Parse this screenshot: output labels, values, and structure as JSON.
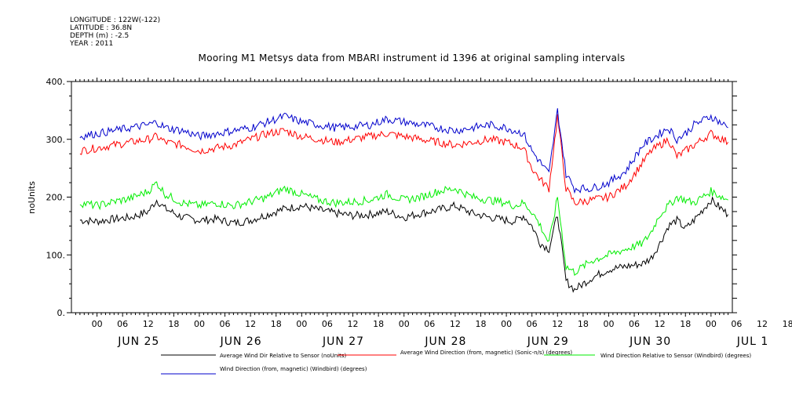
{
  "meta": {
    "longitude": "LONGITUDE : 122W(-122)",
    "latitude": "LATITUDE : 36.8N",
    "depth": "DEPTH (m) : -2.5",
    "year": "YEAR : 2011"
  },
  "chart_data": {
    "type": "line",
    "title": "Mooring M1 Metsys data from MBARI instrument id 1396 at original sampling intervals",
    "ylabel": "noUnits",
    "xlabel": "",
    "ylim": [
      0,
      400
    ],
    "xlim_hours": [
      -6,
      149
    ],
    "y_ticks": [
      "0.",
      "100.",
      "200.",
      "300.",
      "400."
    ],
    "y_tick_values": [
      0,
      100,
      200,
      300,
      400
    ],
    "hour_tick_labels": [
      "00",
      "06",
      "12",
      "18",
      "00",
      "06",
      "12",
      "18",
      "00",
      "06",
      "12",
      "18",
      "00",
      "06",
      "12",
      "18",
      "00",
      "06",
      "12",
      "18",
      "00",
      "06",
      "12",
      "18",
      "00",
      "06",
      "12",
      "18"
    ],
    "day_labels": [
      "JUN 25",
      "JUN 26",
      "JUN 27",
      "JUN 28",
      "JUN 29",
      "JUN 30",
      "JUL  1"
    ],
    "grid": false,
    "legend_position": "bottom",
    "series": [
      {
        "name": "Average Wind Dir Relative to Sensor (noUnits)",
        "color": "#000000",
        "x": [
          -4,
          0,
          4,
          8,
          12,
          14,
          16,
          20,
          24,
          28,
          32,
          36,
          40,
          44,
          48,
          52,
          56,
          60,
          64,
          68,
          72,
          76,
          80,
          84,
          88,
          92,
          96,
          98,
          100,
          102,
          104,
          106,
          108,
          110,
          112,
          116,
          120,
          124,
          128,
          130,
          132,
          134,
          136,
          138,
          140,
          144,
          148
        ],
        "values": [
          160,
          158,
          162,
          165,
          175,
          195,
          180,
          165,
          160,
          162,
          155,
          160,
          170,
          180,
          185,
          178,
          172,
          168,
          170,
          175,
          165,
          172,
          178,
          185,
          172,
          165,
          160,
          158,
          168,
          150,
          120,
          110,
          170,
          55,
          40,
          60,
          75,
          80,
          85,
          95,
          120,
          150,
          160,
          145,
          160,
          195,
          170
        ]
      },
      {
        "name": "Average Wind Direction (from, magnetic) (Sonic-n/s) (degrees)",
        "color": "#ff0000",
        "x": [
          -4,
          0,
          4,
          8,
          12,
          14,
          16,
          20,
          24,
          28,
          32,
          36,
          40,
          44,
          48,
          52,
          56,
          60,
          64,
          68,
          72,
          76,
          80,
          84,
          88,
          92,
          96,
          98,
          100,
          102,
          104,
          106,
          108,
          110,
          112,
          116,
          120,
          124,
          128,
          130,
          132,
          134,
          136,
          138,
          140,
          144,
          148
        ],
        "values": [
          280,
          285,
          290,
          295,
          300,
          305,
          295,
          290,
          280,
          285,
          290,
          300,
          310,
          315,
          305,
          300,
          295,
          300,
          305,
          310,
          305,
          300,
          295,
          290,
          295,
          300,
          295,
          290,
          285,
          250,
          230,
          215,
          340,
          215,
          190,
          195,
          200,
          220,
          260,
          280,
          290,
          300,
          270,
          280,
          290,
          310,
          295
        ]
      },
      {
        "name": "Wind Direction Relative to Sensor (Windbird) (degrees)",
        "color": "#00ee00",
        "x": [
          -4,
          0,
          4,
          8,
          12,
          14,
          16,
          20,
          24,
          28,
          32,
          36,
          40,
          44,
          48,
          52,
          56,
          60,
          64,
          68,
          72,
          76,
          80,
          84,
          88,
          92,
          96,
          98,
          100,
          102,
          104,
          106,
          108,
          110,
          112,
          116,
          120,
          124,
          128,
          130,
          132,
          134,
          136,
          138,
          140,
          144,
          148
        ],
        "values": [
          190,
          185,
          192,
          198,
          210,
          225,
          205,
          190,
          185,
          190,
          185,
          192,
          200,
          215,
          205,
          195,
          190,
          192,
          195,
          205,
          195,
          200,
          210,
          215,
          200,
          195,
          190,
          185,
          190,
          175,
          150,
          120,
          200,
          80,
          70,
          90,
          100,
          110,
          120,
          140,
          170,
          185,
          200,
          195,
          190,
          210,
          195
        ]
      },
      {
        "name": "Wind Direction (from, magnetic) (Windbird) (degrees)",
        "color": "#0000cc",
        "x": [
          -4,
          0,
          4,
          8,
          12,
          14,
          16,
          20,
          24,
          28,
          32,
          36,
          40,
          44,
          48,
          52,
          56,
          60,
          64,
          68,
          72,
          76,
          80,
          84,
          88,
          92,
          96,
          98,
          100,
          102,
          104,
          106,
          108,
          110,
          112,
          116,
          120,
          124,
          128,
          130,
          132,
          134,
          136,
          138,
          140,
          144,
          148
        ],
        "values": [
          305,
          310,
          315,
          320,
          325,
          330,
          320,
          315,
          305,
          310,
          315,
          320,
          330,
          340,
          330,
          325,
          320,
          322,
          325,
          335,
          330,
          325,
          320,
          315,
          320,
          325,
          320,
          315,
          310,
          280,
          260,
          240,
          350,
          240,
          215,
          215,
          225,
          245,
          290,
          300,
          310,
          320,
          300,
          310,
          325,
          340,
          320
        ]
      }
    ]
  }
}
